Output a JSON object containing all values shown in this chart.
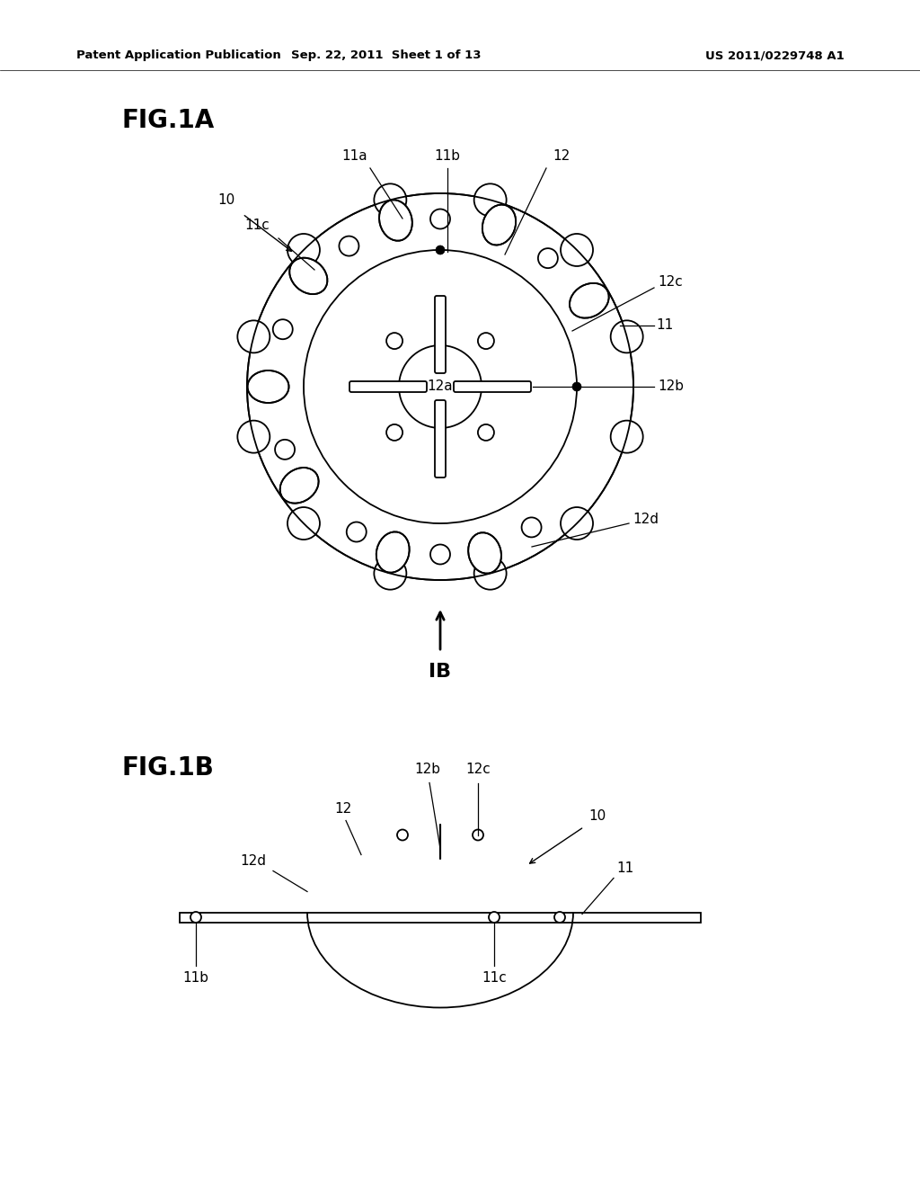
{
  "bg_color": "#ffffff",
  "header_left": "Patent Application Publication",
  "header_mid": "Sep. 22, 2011  Sheet 1 of 13",
  "header_right": "US 2011/0229748 A1",
  "fig1a_label": "FIG.1A",
  "fig1b_label": "FIG.1B",
  "ib_label": "IB",
  "line_color": "#000000",
  "lw": 1.3
}
